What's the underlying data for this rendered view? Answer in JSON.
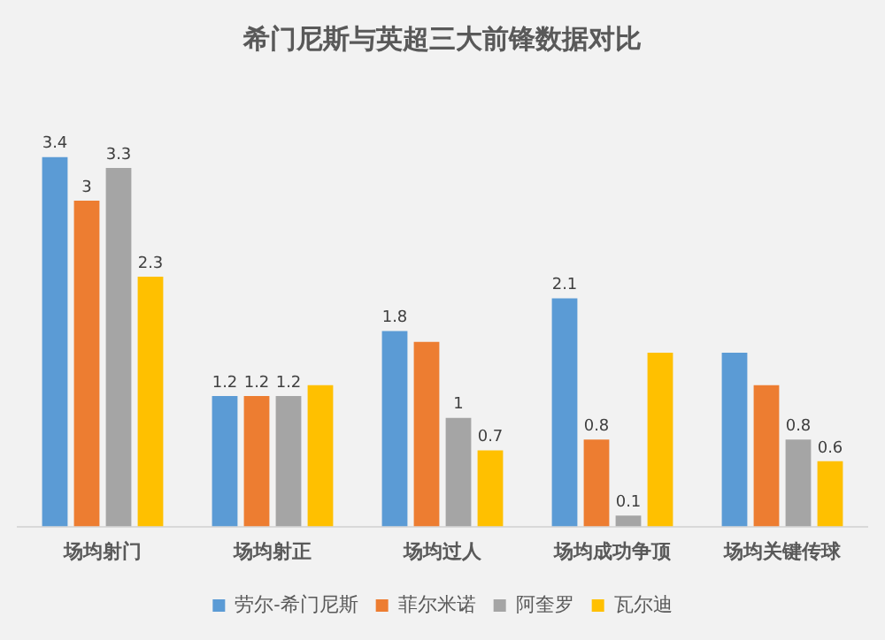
{
  "chart_data": {
    "type": "bar",
    "title": "希门尼斯与英超三大前锋数据对比",
    "categories": [
      "场均射门",
      "场均射正",
      "场均过人",
      "场均成功争顶",
      "场均关键传球"
    ],
    "series": [
      {
        "name": "劳尔-希门尼斯",
        "color": "#5b9bd5",
        "values": [
          3.4,
          1.2,
          1.8,
          2.1,
          1.6
        ],
        "value_labels": [
          "3.4",
          "1.2",
          "1.8",
          "2.1",
          null
        ]
      },
      {
        "name": "菲尔米诺",
        "color": "#ed7d31",
        "values": [
          3,
          1.2,
          1.7,
          0.8,
          1.3
        ],
        "value_labels": [
          "3",
          "1.2",
          null,
          "0.8",
          null
        ]
      },
      {
        "name": "阿奎罗",
        "color": "#a5a5a5",
        "values": [
          3.3,
          1.2,
          1,
          0.1,
          0.8
        ],
        "value_labels": [
          "3.3",
          "1.2",
          "1",
          "0.1",
          "0.8"
        ]
      },
      {
        "name": "瓦尔迪",
        "color": "#ffc000",
        "values": [
          2.3,
          1.3,
          0.7,
          1.6,
          0.6
        ],
        "value_labels": [
          "2.3",
          null,
          "0.7",
          null,
          "0.6"
        ]
      }
    ],
    "legend": "bottom",
    "grid": false
  }
}
